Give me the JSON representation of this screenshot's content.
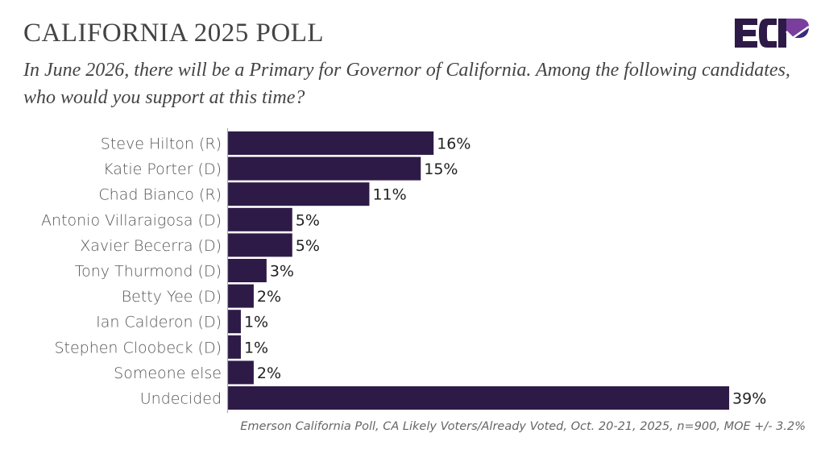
{
  "header": {
    "title": "CALIFORNIA 2025 POLL",
    "question": "In June 2026, there will be a Primary for Governor of California. Among the following candidates, who would you support at this time?"
  },
  "logo": {
    "text": "ECP",
    "colors": {
      "primary": "#2e1a47",
      "accent_top": "#7a3e9d",
      "accent_bottom": "#3b2a7a"
    }
  },
  "footer": {
    "source": "Emerson California Poll, CA Likely Voters/Already Voted, Oct. 20-21, 2025, n=900, MOE +/- 3.2%"
  },
  "chart_data": {
    "type": "bar",
    "orientation": "horizontal",
    "title": "CALIFORNIA 2025 POLL",
    "subtitle": "In June 2026, there will be a Primary for Governor of California. Among the following candidates, who would you support at this time?",
    "xlabel": "",
    "ylabel": "",
    "xlim": [
      0,
      40
    ],
    "grid": false,
    "legend": "none",
    "bar_color": "#2e1a47",
    "value_suffix": "%",
    "categories": [
      "Steve Hilton (R)",
      "Katie Porter (D)",
      "Chad Bianco (R)",
      "Antonio Villaraigosa (D)",
      "Xavier Becerra (D)",
      "Tony Thurmond (D)",
      "Betty Yee (D)",
      "Ian Calderon (D)",
      "Stephen Cloobeck (D)",
      "Someone else",
      "Undecided"
    ],
    "values": [
      16,
      15,
      11,
      5,
      5,
      3,
      2,
      1,
      1,
      2,
      39
    ],
    "data_labels": [
      "16%",
      "15%",
      "11%",
      "5%",
      "5%",
      "3%",
      "2%",
      "1%",
      "1%",
      "2%",
      "39%"
    ],
    "source": "Emerson California Poll, CA Likely Voters/Already Voted, Oct. 20-21, 2025, n=900, MOE +/- 3.2%"
  }
}
